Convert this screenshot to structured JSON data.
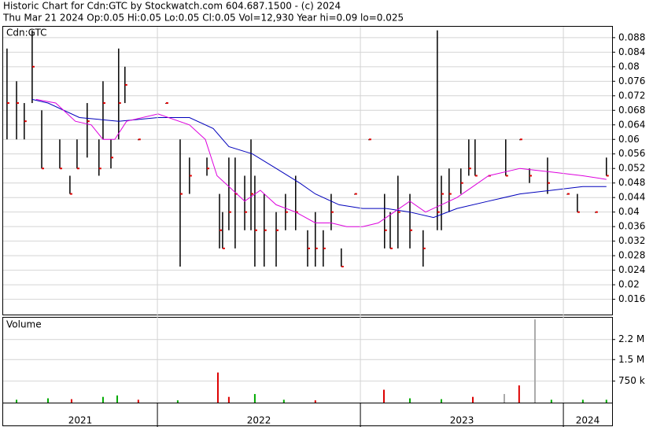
{
  "header": {
    "title": "Historic Chart for Cdn:GTC by Stockwatch.com 604.687.1500 - (c) 2024",
    "quote": "Thu Mar 21 2024  Op:0.05  Hi:0.05  Lo:0.05  Cl:0.05  Vol=12,930  Year hi=0.09  lo=0.025"
  },
  "chart_data": [
    {
      "type": "hlc",
      "label": "Cdn:GTC",
      "xlim": [
        2021.24,
        2024.24
      ],
      "ylim": [
        0.0118,
        0.091
      ],
      "yticks": [
        0.016,
        0.02,
        0.024,
        0.028,
        0.032,
        0.036,
        0.04,
        0.044,
        0.048,
        0.052,
        0.056,
        0.06,
        0.064,
        0.068,
        0.072,
        0.076,
        0.08,
        0.084,
        0.088
      ],
      "grid": true,
      "bar_color": "#000000",
      "close_color": "#dd0000",
      "x": [
        2021.259,
        2021.306,
        2021.344,
        2021.383,
        2021.43,
        2021.519,
        2021.569,
        2021.604,
        2021.654,
        2021.712,
        2021.732,
        2021.771,
        2021.809,
        2021.84,
        2021.906,
        2022.042,
        2022.112,
        2022.158,
        2022.244,
        2022.306,
        2022.321,
        2022.352,
        2022.383,
        2022.43,
        2022.461,
        2022.48,
        2022.526,
        2022.585,
        2022.631,
        2022.681,
        2022.74,
        2022.778,
        2022.817,
        2022.856,
        2022.906,
        2022.972,
        2023.042,
        2023.119,
        2023.147,
        2023.185,
        2023.244,
        2023.309,
        2023.379,
        2023.399,
        2023.437,
        2023.495,
        2023.534,
        2023.565,
        2023.631,
        2023.716,
        2023.786,
        2023.833,
        2023.922,
        2024.019,
        2024.069,
        2024.158,
        2024.212
      ],
      "high": [
        0.085,
        0.076,
        0.07,
        0.09,
        0.068,
        0.06,
        0.05,
        0.06,
        0.07,
        0.06,
        0.076,
        0.06,
        0.085,
        0.08,
        0.06,
        0.07,
        0.06,
        0.055,
        0.055,
        0.045,
        0.04,
        0.055,
        0.055,
        0.05,
        0.06,
        0.05,
        0.045,
        0.04,
        0.045,
        0.05,
        0.035,
        0.04,
        0.035,
        0.045,
        0.03,
        0.045,
        0.06,
        0.045,
        0.04,
        0.05,
        0.045,
        0.035,
        0.09,
        0.05,
        0.052,
        0.052,
        0.06,
        0.06,
        0.05,
        0.06,
        0.06,
        0.052,
        0.055,
        0.045,
        0.045,
        0.04,
        0.055
      ],
      "low": [
        0.06,
        0.06,
        0.06,
        0.07,
        0.052,
        0.052,
        0.045,
        0.052,
        0.055,
        0.05,
        0.06,
        0.052,
        0.06,
        0.07,
        0.06,
        0.07,
        0.025,
        0.045,
        0.05,
        0.03,
        0.03,
        0.035,
        0.03,
        0.035,
        0.035,
        0.025,
        0.025,
        0.025,
        0.035,
        0.035,
        0.025,
        0.025,
        0.025,
        0.035,
        0.025,
        0.045,
        0.06,
        0.03,
        0.03,
        0.03,
        0.03,
        0.025,
        0.035,
        0.035,
        0.04,
        0.045,
        0.05,
        0.05,
        0.05,
        0.05,
        0.06,
        0.048,
        0.045,
        0.045,
        0.04,
        0.04,
        0.05
      ],
      "close": [
        0.07,
        0.07,
        0.065,
        0.08,
        0.052,
        0.052,
        0.045,
        0.052,
        0.065,
        0.052,
        0.07,
        0.055,
        0.07,
        0.075,
        0.06,
        0.07,
        0.045,
        0.05,
        0.052,
        0.035,
        0.03,
        0.04,
        0.045,
        0.04,
        0.045,
        0.035,
        0.035,
        0.035,
        0.04,
        0.04,
        0.03,
        0.03,
        0.03,
        0.04,
        0.025,
        0.045,
        0.06,
        0.035,
        0.03,
        0.04,
        0.035,
        0.03,
        0.04,
        0.045,
        0.045,
        0.048,
        0.052,
        0.05,
        0.05,
        0.05,
        0.06,
        0.05,
        0.048,
        0.045,
        0.04,
        0.04,
        0.05
      ],
      "lines": [
        {
          "color": "#0000bb",
          "x": [
            2021.383,
            2021.461,
            2021.616,
            2021.809,
            2022.003,
            2022.158,
            2022.275,
            2022.352,
            2022.468,
            2022.585,
            2022.701,
            2022.778,
            2022.895,
            2023.011,
            2023.127,
            2023.244,
            2023.36,
            2023.476,
            2023.631,
            2023.786,
            2023.941,
            2024.096,
            2024.212
          ],
          "values": [
            0.071,
            0.07,
            0.066,
            0.065,
            0.066,
            0.066,
            0.063,
            0.058,
            0.056,
            0.052,
            0.048,
            0.045,
            0.042,
            0.041,
            0.041,
            0.04,
            0.0385,
            0.041,
            0.043,
            0.045,
            0.046,
            0.047,
            0.047
          ]
        },
        {
          "color": "#dd00dd",
          "x": [
            2021.402,
            2021.499,
            2021.596,
            2021.674,
            2021.732,
            2021.79,
            2021.848,
            2022.003,
            2022.158,
            2022.236,
            2022.294,
            2022.352,
            2022.43,
            2022.507,
            2022.585,
            2022.681,
            2022.778,
            2022.856,
            2022.933,
            2023.011,
            2023.088,
            2023.166,
            2023.244,
            2023.321,
            2023.399,
            2023.476,
            2023.554,
            2023.631,
            2023.786,
            2023.941,
            2024.096,
            2024.212
          ],
          "values": [
            0.071,
            0.07,
            0.065,
            0.064,
            0.06,
            0.06,
            0.065,
            0.067,
            0.064,
            0.06,
            0.05,
            0.047,
            0.043,
            0.046,
            0.042,
            0.04,
            0.037,
            0.037,
            0.036,
            0.036,
            0.037,
            0.04,
            0.043,
            0.04,
            0.042,
            0.044,
            0.047,
            0.05,
            0.052,
            0.051,
            0.05,
            0.049
          ]
        }
      ]
    },
    {
      "type": "bar",
      "label": "Volume",
      "xlim": [
        2021.24,
        2024.24
      ],
      "ylim": [
        0,
        2960000
      ],
      "yticks": [
        {
          "value": 750000,
          "label": "750 k"
        },
        {
          "value": 1500000,
          "label": "1.5 M"
        },
        {
          "value": 2200000,
          "label": "2.2 M"
        }
      ],
      "xticks": [
        2022,
        2023,
        2024
      ],
      "period_labels": [
        "2021",
        "2022",
        "2023",
        "2024"
      ],
      "x": [
        2021.306,
        2021.461,
        2021.577,
        2021.732,
        2021.802,
        2021.906,
        2022.1,
        2022.298,
        2022.352,
        2022.48,
        2022.623,
        2022.778,
        2023.116,
        2023.244,
        2023.399,
        2023.554,
        2023.709,
        2023.782,
        2023.86,
        2023.941,
        2024.096,
        2024.212
      ],
      "values": [
        100000,
        150000,
        120000,
        200000,
        250000,
        100000,
        80000,
        1050000,
        200000,
        300000,
        100000,
        80000,
        450000,
        150000,
        120000,
        200000,
        300000,
        600000,
        2900000,
        100000,
        100000,
        100000
      ],
      "colors": [
        "#00aa00",
        "#00aa00",
        "#dd0000",
        "#00aa00",
        "#00aa00",
        "#dd0000",
        "#00aa00",
        "#dd0000",
        "#dd0000",
        "#00aa00",
        "#00aa00",
        "#dd0000",
        "#dd0000",
        "#00aa00",
        "#00aa00",
        "#dd0000",
        "#aaaaaa",
        "#dd0000",
        "#aaaaaa",
        "#00aa00",
        "#00aa00",
        "#00aa00"
      ]
    }
  ]
}
